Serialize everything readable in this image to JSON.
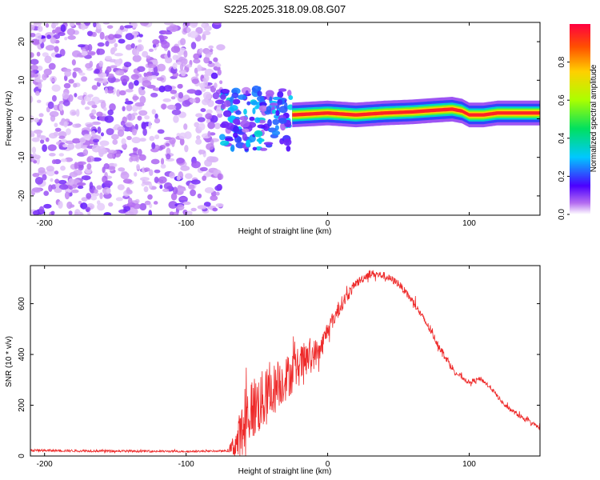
{
  "title": "S225.2025.318.09.08.G07",
  "chart_data": [
    {
      "type": "heatmap",
      "panel": "top",
      "xlabel": "Height of straight line (km)",
      "ylabel": "Frequency (Hz)",
      "xlim": [
        -210,
        150
      ],
      "ylim": [
        -25,
        25
      ],
      "xticks": [
        -200,
        -100,
        0,
        100
      ],
      "yticks": [
        -20,
        -10,
        0,
        10,
        20
      ],
      "colorbar": {
        "label": "Normalized spectral amplitude",
        "range": [
          0,
          1
        ],
        "ticks": [
          "0.0",
          "0.2",
          "0.4",
          "0.6",
          "0.8"
        ],
        "tick_values": [
          0.0,
          0.2,
          0.4,
          0.6,
          0.8
        ]
      },
      "regions": [
        {
          "name": "noise",
          "x": [
            -210,
            -75
          ],
          "freq_range": [
            -25,
            25
          ],
          "amplitude": [
            0.02,
            0.15
          ]
        },
        {
          "name": "transition",
          "x": [
            -75,
            -25
          ],
          "freq_range": [
            -8,
            8
          ],
          "amplitude": [
            0.05,
            0.35
          ]
        },
        {
          "name": "signal-line",
          "x": [
            -25,
            150
          ],
          "center_freq": [
            [
              -25,
              1
            ],
            [
              0,
              1.5
            ],
            [
              20,
              1
            ],
            [
              40,
              1.5
            ],
            [
              60,
              1.8
            ],
            [
              75,
              2.2
            ],
            [
              88,
              2.5
            ],
            [
              95,
              2
            ],
            [
              100,
              1
            ],
            [
              110,
              1
            ],
            [
              120,
              1.5
            ],
            [
              150,
              1.5
            ]
          ],
          "amplitude": [
            0.7,
            1.0
          ]
        }
      ]
    },
    {
      "type": "line",
      "panel": "bottom",
      "xlabel": "Height of straight line (km)",
      "ylabel": "SNR (10 * v/v)",
      "xlim": [
        -210,
        150
      ],
      "ylim": [
        0,
        750
      ],
      "xticks": [
        -200,
        -100,
        0,
        100
      ],
      "yticks": [
        0,
        200,
        400,
        600
      ],
      "series": [
        {
          "name": "SNR",
          "color": "#ee2a2a",
          "envelope": {
            "x": [
              -210,
              -160,
              -100,
              -70,
              -63,
              -55,
              -45,
              -35,
              -25,
              -15,
              -5,
              0,
              10,
              20,
              30,
              40,
              50,
              60,
              70,
              80,
              90,
              100,
              108,
              115,
              125,
              135,
              150
            ],
            "mean": [
              22,
              20,
              18,
              20,
              60,
              180,
              220,
              280,
              330,
              380,
              420,
              500,
              600,
              680,
              720,
              710,
              680,
              610,
              520,
              420,
              330,
              290,
              305,
              270,
              200,
              160,
              110
            ],
            "spread": [
              8,
              8,
              6,
              6,
              160,
              220,
              200,
              160,
              140,
              120,
              80,
              60,
              50,
              30,
              25,
              25,
              25,
              25,
              25,
              25,
              20,
              15,
              15,
              15,
              15,
              15,
              15
            ]
          }
        }
      ]
    }
  ]
}
